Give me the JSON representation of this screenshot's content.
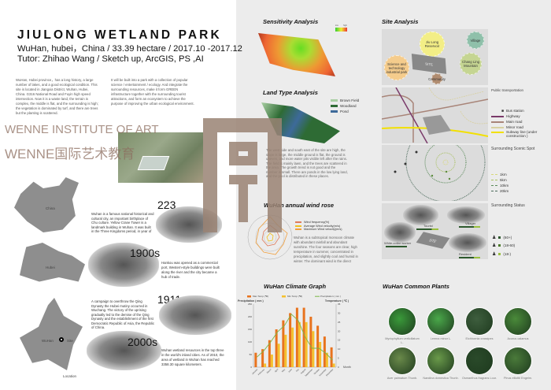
{
  "header": {
    "title": "JIULONG WETLAND PARK",
    "subtitle_1": "WuHan, hubei，China / 33.39 hectare / 2017.10 -2017.12",
    "subtitle_2": "Tutor: Zhihao Wang / Sketch up, ArcGIS, PS ,AI"
  },
  "intro": {
    "para_1": "WuHan, Hubei province，has a long history, a large number of lakes, and a good ecological condition. This site is located in Jiangxia District, Wuhan, Hubei, China. G316 National Road and Fuyin high speed intersection. Now it is a waste land, the terrain is complex, the middle is flat, and the surrounding is high; the vegetation is dominated by turf, and there are trees but the planting is scattered.",
    "para_2": "It will be built into a park with a collection of popular science / entertainment / ecology. And integrate the surrounding resources, make it form GREEN infrastructure together with the surrounding tourist attractions, and form an ecosystem to achieve the purpose of improving the urban ecological environment."
  },
  "location": {
    "china": "China",
    "hubei": "Hubei",
    "wuhan": "WuHan",
    "site": "Site",
    "caption": "Location"
  },
  "timeline": [
    {
      "year": "223",
      "text": "Wuhan is a famous national historical and cultural city, an important birthplace of Chu culture. Yellow Crane Tower is a landmark building in Wuhan. It was built in the Three Kingdoms period, in year of"
    },
    {
      "year": "1900s",
      "text": "Hankou was opened as a commercial port, Western-style buildings were built along the river and the city became a hub of trade."
    },
    {
      "year": "1911",
      "text": "A campaign to overthrow the Qing Dynasty the Hubei mutiny occurred in Wuchang. The victory of the uprising gradually led to the demise of the Qing Dynasty and the establishment of the first Democratic Republic of Asia, the Republic of China."
    },
    {
      "year": "2000s",
      "text": "Wuhan wetland resources in the top three in the world's inland cities. As of 2010, the area of wetland in Wuhan has reached 3358.30 square kilometers."
    }
  ],
  "sensitivity": {
    "title": "Sensitivity Analysis",
    "legend_low": "low",
    "legend_high": "high"
  },
  "land_type": {
    "title": "Land Type Analysis",
    "legend": [
      {
        "label": "Brown Field",
        "color": "#a9cfa3"
      },
      {
        "label": "Woodland",
        "color": "#2e6b34"
      },
      {
        "label": "Pond",
        "color": "#3d6a9a"
      }
    ],
    "text": "The west side and south east of the site are high, the slope is large, the middle ground is flat, the ground is uneven, and more water pits visible left after the rains. The field is mainly lawn, and the trees are scattered in the area. The growth trend is not good and the number is small. There are ponds in the low lying land, and the pool is distributed in these places."
  },
  "wind_rose": {
    "title": "WuHan annual wind rose",
    "legend": [
      {
        "label": "Wind frequency(%)",
        "color": "#e07b5a"
      },
      {
        "label": "Average Wind velocity(m/s)",
        "color": "#f0c020"
      },
      {
        "label": "Maximum Wind velocity(m/s)",
        "color": "#f0a040"
      }
    ],
    "text": "Wuhan is a subtropical monsoon climate with abundant rainfall and abundant sunshine. The four seasons are clear, high temperature in summer, concentrated in precipitation, and slightly cool and humid in winter. The dominant wind is the direct"
  },
  "climate": {
    "title": "WuHan  Climate Graph"
  },
  "chart_data": {
    "type": "bar",
    "title": "WuHan  Climate Graph",
    "categories": [
      "January",
      "February",
      "March",
      "April",
      "May",
      "June",
      "July",
      "August",
      "September",
      "October",
      "November",
      "December"
    ],
    "xlabel": "Month",
    "ylabel": "Precipitation ( mm )",
    "ylabel_right": "Temperature ( ℃ )",
    "ylim": [
      0,
      250
    ],
    "ylim_right": [
      0,
      35
    ],
    "yticks": [
      0,
      50,
      100,
      150,
      200,
      250
    ],
    "yticks_right": [
      0,
      5,
      10,
      15,
      20,
      25,
      30,
      35
    ],
    "legend_position": "top",
    "series": [
      {
        "name": "Max Temp (℃)",
        "type": "bar",
        "axis": "right",
        "color": "#e8731e",
        "values": [
          8,
          10,
          15,
          21,
          26,
          30,
          33,
          33,
          28,
          23,
          17,
          11
        ]
      },
      {
        "name": "Min Temp (℃)",
        "type": "bar",
        "axis": "right",
        "color": "#f5c12e",
        "values": [
          0,
          2,
          7,
          13,
          18,
          22,
          25,
          25,
          20,
          14,
          8,
          2
        ]
      },
      {
        "name": "Precipitation ( mm )",
        "type": "line",
        "axis": "left",
        "color": "#7ab648",
        "values": [
          40,
          65,
          100,
          140,
          165,
          210,
          185,
          120,
          75,
          75,
          55,
          28
        ]
      }
    ]
  },
  "site_analysis": {
    "title": "Site Analysis",
    "places": {
      "reservoir": "Jiu Long Reservoir",
      "village": "Village",
      "mountain": "Chang Ling Mountain",
      "park": "Science and technology industrial park",
      "site": "SITE",
      "community": "Community"
    },
    "transport": {
      "title": "Public transportation",
      "legend": [
        {
          "label": "Bus station",
          "color": "#333333"
        },
        {
          "label": "Highway",
          "color": "#7a3a6a"
        },
        {
          "label": "Main road",
          "color": "#a88478"
        },
        {
          "label": "Minor road",
          "color": "#d8d0a0"
        },
        {
          "label": "Subway line (under construction )",
          "color": "#f2e000"
        }
      ]
    },
    "scenic": {
      "title": "Surrounding Scenic Spot",
      "legend": [
        {
          "label": "1km",
          "color": "#d8d87a"
        },
        {
          "label": "5km",
          "color": "#a8c060"
        },
        {
          "label": "10km",
          "color": "#5a8a5a"
        },
        {
          "label": "20km",
          "color": "#4a6a5a"
        }
      ]
    },
    "status": {
      "title": "Surrounding Status",
      "groups": [
        "Tourist",
        "Villager",
        "White-collar worker",
        "Resident"
      ],
      "site": "SITE",
      "ages": [
        {
          "label": "(60+)",
          "color": "#2e5a2e"
        },
        {
          "label": "(18-60)",
          "color": "#4a7a2a"
        },
        {
          "label": "(18-)",
          "color": "#9ac040"
        }
      ]
    }
  },
  "plants": {
    "title": "WuHan Common Plants",
    "items": [
      {
        "name": "Myriophyllum verticillatum L.",
        "color": "#3a9a3a"
      },
      {
        "name": "Lemna minor L.",
        "color": "#4aa84a"
      },
      {
        "name": "Eichhornia crassipes",
        "color": "#3e5e3e"
      },
      {
        "name": "Acorus calamus",
        "color": "#4a8a3a"
      },
      {
        "name": "Acer palmatum Thunb.",
        "color": "#6a8a4a"
      },
      {
        "name": "Nandina domestica Thunb.",
        "color": "#6a9a4a"
      },
      {
        "name": "Osmanthus fragrans Lour.",
        "color": "#2a4a2a"
      },
      {
        "name": "Pinus elliottii Engelm.",
        "color": "#4a7a3a"
      }
    ]
  },
  "watermark": {
    "en": "WENNE INSTITUTE OF ART",
    "cn": "WENNE国际艺术教育"
  }
}
